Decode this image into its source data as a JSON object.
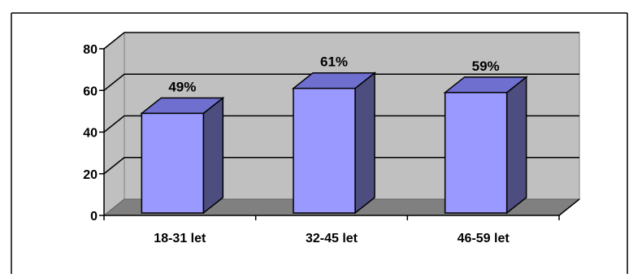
{
  "chart_data": {
    "type": "bar",
    "style": "3d-column",
    "categories": [
      "18-31 let",
      "32-45 let",
      "46-59 let"
    ],
    "values": [
      49,
      61,
      59
    ],
    "data_labels": [
      "49%",
      "61%",
      "59%"
    ],
    "title": "",
    "xlabel": "",
    "ylabel": "",
    "ylim": [
      0,
      80
    ],
    "yticks": [
      0,
      20,
      40,
      60,
      80
    ],
    "grid": true,
    "legend": "none",
    "colors": {
      "bar_front": "#9999ff",
      "bar_side": "#4d4d80",
      "bar_top": "#6f6fd0",
      "wall": "#c0c0c0",
      "floor": "#808080",
      "gridline": "#000000"
    }
  }
}
